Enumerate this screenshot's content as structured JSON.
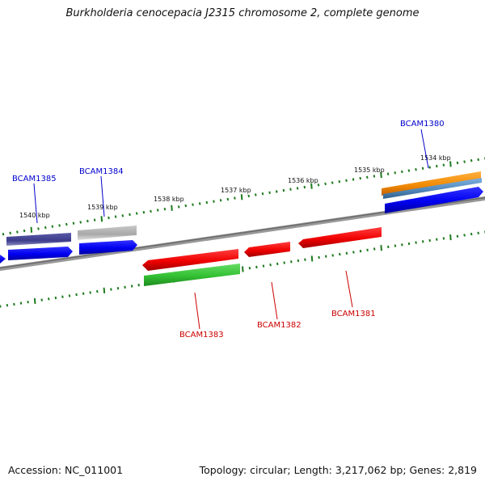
{
  "title": "Burkholderia cenocepacia J2315 chromosome 2, complete genome",
  "footer": {
    "accession": "Accession: NC_011001",
    "summary": "Topology: circular; Length: 3,217,062 bp; Genes: 2,819"
  },
  "colors": {
    "backbone": "#808080",
    "ticks": "#1e7a1e",
    "blue": "#0a0aff",
    "red": "#ff0a0a",
    "green": "#33cc33",
    "navy": "#3c3c8c",
    "grey": "#b4b4b4",
    "orange": "#ff9a1a",
    "steelblue": "#4f86b8",
    "label_blue": "#0000cc",
    "label_red": "#cc0000"
  },
  "upper_scale_labels": [
    "1540 kbp",
    "1539 kbp",
    "1538 kbp",
    "1537 kbp",
    "1536 kbp",
    "1535 kbp",
    "1534 kbp"
  ],
  "gene_labels": [
    "BCAM1385",
    "BCAM1384",
    "BCAM1380",
    "BCAM1383",
    "BCAM1382",
    "BCAM1381"
  ]
}
